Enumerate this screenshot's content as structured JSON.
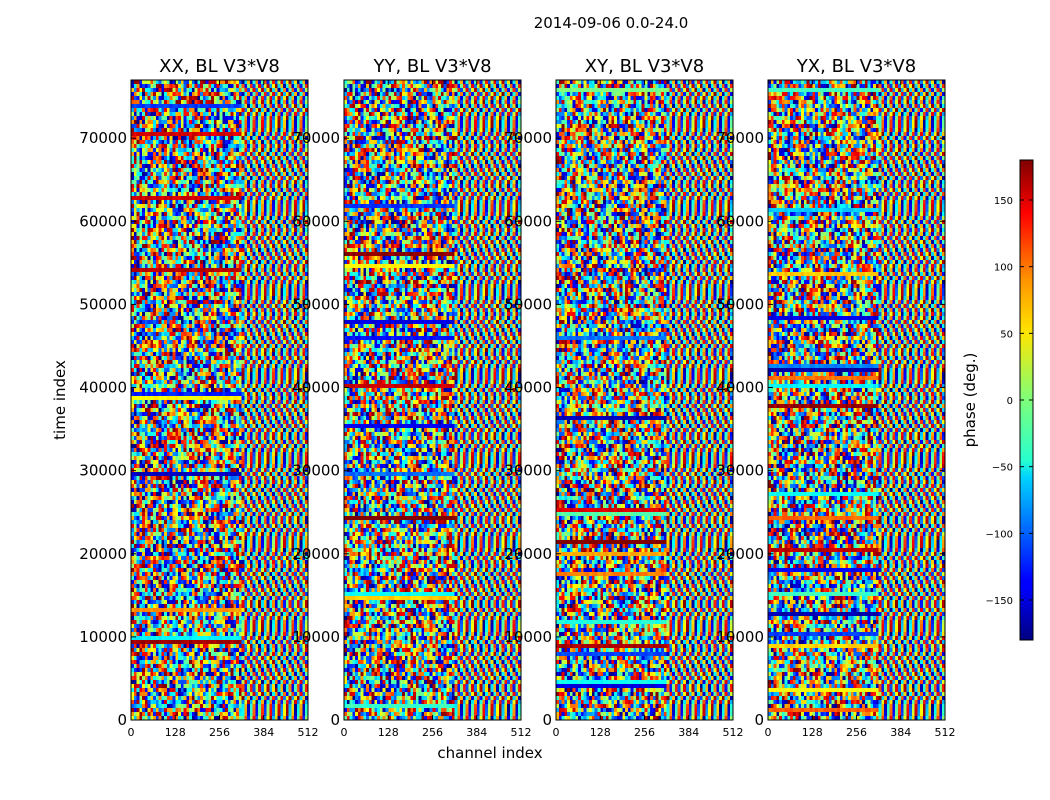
{
  "chart_data": {
    "type": "heatmap",
    "suptitle": "2014-09-06 0.0-24.0",
    "xlabel": "channel index",
    "ylabel": "time index",
    "xlim": [
      0,
      512
    ],
    "ylim": [
      0,
      77000
    ],
    "xticks": [
      0,
      128,
      256,
      384,
      512
    ],
    "yticks": [
      0,
      10000,
      20000,
      30000,
      40000,
      50000,
      60000,
      70000
    ],
    "ytick_labels": [
      "0",
      "10000",
      "20000",
      "30000",
      "40000",
      "50000",
      "60000",
      "70000"
    ],
    "colormap": "jet",
    "panels": [
      {
        "title": "XX, BL V3*V8"
      },
      {
        "title": "YY, BL V3*V8"
      },
      {
        "title": "XY, BL V3*V8"
      },
      {
        "title": "YX, BL V3*V8"
      }
    ],
    "colorbar": {
      "label": "phase (deg.)",
      "range": [
        -180,
        180
      ],
      "ticks": [
        150,
        100,
        50,
        0,
        -50,
        -100,
        -150
      ],
      "tick_labels": [
        "150",
        "100",
        "50",
        "0",
        "−50",
        "−100",
        "−150"
      ]
    }
  }
}
